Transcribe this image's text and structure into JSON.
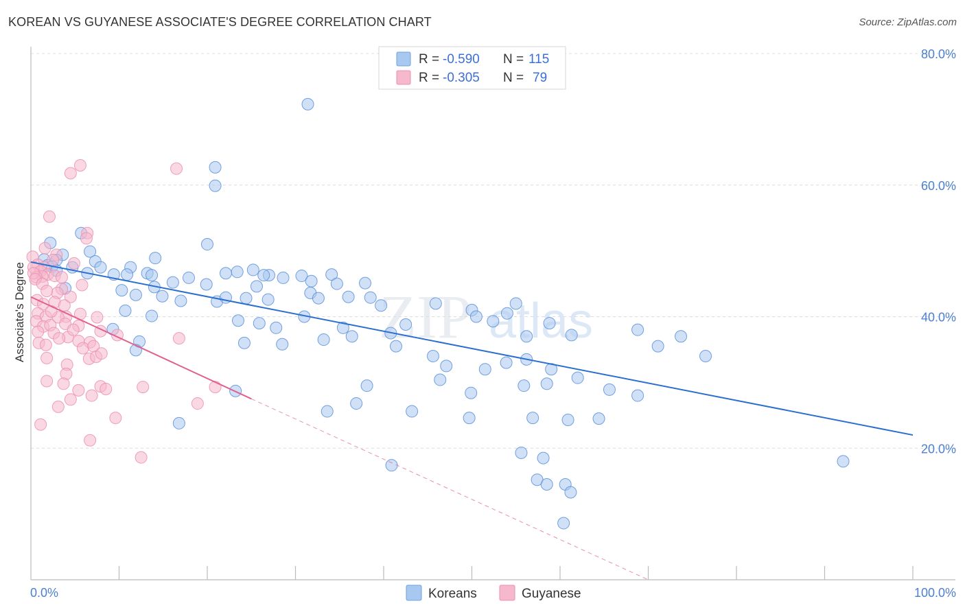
{
  "title": "KOREAN VS GUYANESE ASSOCIATE'S DEGREE CORRELATION CHART",
  "source": "Source: ZipAtlas.com",
  "watermark": {
    "zip": "ZIP",
    "atlas": "atlas"
  },
  "legend_top": [
    {
      "r_label": "R =",
      "r_value": "-0.590",
      "n_label": "N =",
      "n_value": "115",
      "fill": "#a9c8f0",
      "stroke": "#6fa0e0"
    },
    {
      "r_label": "R =",
      "r_value": "-0.305",
      "n_label": "N =",
      "n_value": "79",
      "fill": "#f6b8cc",
      "stroke": "#ec8fae"
    }
  ],
  "chart_data": {
    "type": "scatter",
    "title": "KOREAN VS GUYANESE ASSOCIATE'S DEGREE CORRELATION CHART",
    "xlabel": "",
    "ylabel": "Associate's Degree",
    "xlim": [
      0,
      100
    ],
    "ylim": [
      0,
      80
    ],
    "x_tick_labels": [
      "0.0%",
      "100.0%"
    ],
    "y_ticks": [
      20,
      40,
      60,
      80
    ],
    "y_tick_labels": [
      "20.0%",
      "40.0%",
      "60.0%",
      "80.0%"
    ],
    "grid": "horizontal dashed",
    "legend_position": "bottom-center",
    "series": [
      {
        "name": "Koreans",
        "color": "#5b8fd9",
        "fill": "#a9c8f0",
        "trend": {
          "x": [
            0,
            100
          ],
          "y": [
            48.3,
            22.0
          ],
          "style": "solid",
          "color": "#2a6fd0"
        },
        "points": [
          [
            31.4,
            72.3
          ],
          [
            20.9,
            62.7
          ],
          [
            5.7,
            52.7
          ],
          [
            20.9,
            59.9
          ],
          [
            2.2,
            51.2
          ],
          [
            6.7,
            49.9
          ],
          [
            3.6,
            49.4
          ],
          [
            1.5,
            48.7
          ],
          [
            2.9,
            48.6
          ],
          [
            7.3,
            48.4
          ],
          [
            20.0,
            51.0
          ],
          [
            14.1,
            48.9
          ],
          [
            1.9,
            47.8
          ],
          [
            2.4,
            47.6
          ],
          [
            4.7,
            47.5
          ],
          [
            7.9,
            47.5
          ],
          [
            11.3,
            47.5
          ],
          [
            13.2,
            46.6
          ],
          [
            9.4,
            46.4
          ],
          [
            22.1,
            46.6
          ],
          [
            17.9,
            45.9
          ],
          [
            2.9,
            47.0
          ],
          [
            6.4,
            46.6
          ],
          [
            10.9,
            46.4
          ],
          [
            13.7,
            46.3
          ],
          [
            23.4,
            46.8
          ],
          [
            25.2,
            47.1
          ],
          [
            27.0,
            46.3
          ],
          [
            28.6,
            45.9
          ],
          [
            30.7,
            46.2
          ],
          [
            31.8,
            45.4
          ],
          [
            34.1,
            46.4
          ],
          [
            14.0,
            44.5
          ],
          [
            16.1,
            45.2
          ],
          [
            19.9,
            44.9
          ],
          [
            25.6,
            44.6
          ],
          [
            26.4,
            46.3
          ],
          [
            34.7,
            45.0
          ],
          [
            37.9,
            45.1
          ],
          [
            3.9,
            44.3
          ],
          [
            10.3,
            44.0
          ],
          [
            11.9,
            43.3
          ],
          [
            14.9,
            43.1
          ],
          [
            17.0,
            42.4
          ],
          [
            21.1,
            42.3
          ],
          [
            22.1,
            42.9
          ],
          [
            24.4,
            42.8
          ],
          [
            26.9,
            42.6
          ],
          [
            31.7,
            43.6
          ],
          [
            32.6,
            42.8
          ],
          [
            36.0,
            43.0
          ],
          [
            38.5,
            42.9
          ],
          [
            39.7,
            41.7
          ],
          [
            45.9,
            42.0
          ],
          [
            50.0,
            41.0
          ],
          [
            55.0,
            42.0
          ],
          [
            54.0,
            40.5
          ],
          [
            10.7,
            40.9
          ],
          [
            13.7,
            40.1
          ],
          [
            23.5,
            39.4
          ],
          [
            31.0,
            40.0
          ],
          [
            25.9,
            39.0
          ],
          [
            27.8,
            38.3
          ],
          [
            35.4,
            38.3
          ],
          [
            40.8,
            37.5
          ],
          [
            42.5,
            38.8
          ],
          [
            50.5,
            40.0
          ],
          [
            52.4,
            39.3
          ],
          [
            56.2,
            37.0
          ],
          [
            58.8,
            39.0
          ],
          [
            61.3,
            37.2
          ],
          [
            68.8,
            38.0
          ],
          [
            73.7,
            37.0
          ],
          [
            71.1,
            35.5
          ],
          [
            76.5,
            34.0
          ],
          [
            9.3,
            38.1
          ],
          [
            12.3,
            36.2
          ],
          [
            11.9,
            34.9
          ],
          [
            24.2,
            36.0
          ],
          [
            28.5,
            35.8
          ],
          [
            33.2,
            36.5
          ],
          [
            36.4,
            37.0
          ],
          [
            41.4,
            35.5
          ],
          [
            45.6,
            34.0
          ],
          [
            47.1,
            32.5
          ],
          [
            51.5,
            32.0
          ],
          [
            53.9,
            33.0
          ],
          [
            56.2,
            33.5
          ],
          [
            59.0,
            32.0
          ],
          [
            62.0,
            30.7
          ],
          [
            46.4,
            30.4
          ],
          [
            38.1,
            29.5
          ],
          [
            49.9,
            28.4
          ],
          [
            55.9,
            29.5
          ],
          [
            58.5,
            29.8
          ],
          [
            65.6,
            28.9
          ],
          [
            68.8,
            28.0
          ],
          [
            23.2,
            28.7
          ],
          [
            33.6,
            25.6
          ],
          [
            36.9,
            26.8
          ],
          [
            43.2,
            25.6
          ],
          [
            49.7,
            24.6
          ],
          [
            56.9,
            24.6
          ],
          [
            60.9,
            24.3
          ],
          [
            64.4,
            24.5
          ],
          [
            16.8,
            23.8
          ],
          [
            55.6,
            19.3
          ],
          [
            58.1,
            18.5
          ],
          [
            92.1,
            18.0
          ],
          [
            40.9,
            17.4
          ],
          [
            57.4,
            15.2
          ],
          [
            58.5,
            14.5
          ],
          [
            60.6,
            14.5
          ],
          [
            61.2,
            13.3
          ],
          [
            60.4,
            8.6
          ]
        ]
      },
      {
        "name": "Guyanese",
        "color": "#ec8fae",
        "fill": "#f6b8cc",
        "trend": {
          "x": [
            0,
            25,
            70
          ],
          "y": [
            43.0,
            27.5,
            0.0
          ],
          "style": "solid-then-dashed",
          "color": "#e0608e"
        },
        "points": [
          [
            5.6,
            63.0
          ],
          [
            4.5,
            61.8
          ],
          [
            16.5,
            62.5
          ],
          [
            2.1,
            55.2
          ],
          [
            6.4,
            52.7
          ],
          [
            6.3,
            51.9
          ],
          [
            1.6,
            50.4
          ],
          [
            2.9,
            49.4
          ],
          [
            0.2,
            49.1
          ],
          [
            0.8,
            47.9
          ],
          [
            1.5,
            47.5
          ],
          [
            2.5,
            48.6
          ],
          [
            4.9,
            48.1
          ],
          [
            0.3,
            47.5
          ],
          [
            1.1,
            46.9
          ],
          [
            1.9,
            46.4
          ],
          [
            2.7,
            46.2
          ],
          [
            3.5,
            46.0
          ],
          [
            1.3,
            46.1
          ],
          [
            0.6,
            46.0
          ],
          [
            0.3,
            46.6
          ],
          [
            0.5,
            45.7
          ],
          [
            1.3,
            45.0
          ],
          [
            3.5,
            44.2
          ],
          [
            4.5,
            43.0
          ],
          [
            5.8,
            44.8
          ],
          [
            3.0,
            43.6
          ],
          [
            1.8,
            43.9
          ],
          [
            0.7,
            42.5
          ],
          [
            2.7,
            42.2
          ],
          [
            3.8,
            41.7
          ],
          [
            1.4,
            41.9
          ],
          [
            0.8,
            40.5
          ],
          [
            1.7,
            40.0
          ],
          [
            4.0,
            40.0
          ],
          [
            5.6,
            40.4
          ],
          [
            3.1,
            39.9
          ],
          [
            7.5,
            39.9
          ],
          [
            0.6,
            39.3
          ],
          [
            1.4,
            38.5
          ],
          [
            2.2,
            38.7
          ],
          [
            3.9,
            38.9
          ],
          [
            5.4,
            38.6
          ],
          [
            7.9,
            37.8
          ],
          [
            0.8,
            37.7
          ],
          [
            2.6,
            37.5
          ],
          [
            4.2,
            36.9
          ],
          [
            5.4,
            36.3
          ],
          [
            0.9,
            36.0
          ],
          [
            1.7,
            35.7
          ],
          [
            3.2,
            36.7
          ],
          [
            6.7,
            36.1
          ],
          [
            9.8,
            37.2
          ],
          [
            5.9,
            35.2
          ],
          [
            7.1,
            35.5
          ],
          [
            16.8,
            36.7
          ],
          [
            1.8,
            33.7
          ],
          [
            4.1,
            32.7
          ],
          [
            6.6,
            33.6
          ],
          [
            7.4,
            33.9
          ],
          [
            8.0,
            34.4
          ],
          [
            4.0,
            31.3
          ],
          [
            1.8,
            30.2
          ],
          [
            3.7,
            29.8
          ],
          [
            5.4,
            28.8
          ],
          [
            7.9,
            29.4
          ],
          [
            12.7,
            29.3
          ],
          [
            20.9,
            29.3
          ],
          [
            4.5,
            27.4
          ],
          [
            3.1,
            26.3
          ],
          [
            9.6,
            24.6
          ],
          [
            18.9,
            26.8
          ],
          [
            6.7,
            21.2
          ],
          [
            12.5,
            18.6
          ],
          [
            1.1,
            23.6
          ],
          [
            6.9,
            28.0
          ],
          [
            8.5,
            29.0
          ],
          [
            2.3,
            40.8
          ],
          [
            4.8,
            38.0
          ]
        ]
      }
    ]
  },
  "bottom_legend": [
    {
      "label": "Koreans",
      "fill": "#a9c8f0",
      "stroke": "#6fa0e0"
    },
    {
      "label": "Guyanese",
      "fill": "#f6b8cc",
      "stroke": "#ec8fae"
    }
  ]
}
